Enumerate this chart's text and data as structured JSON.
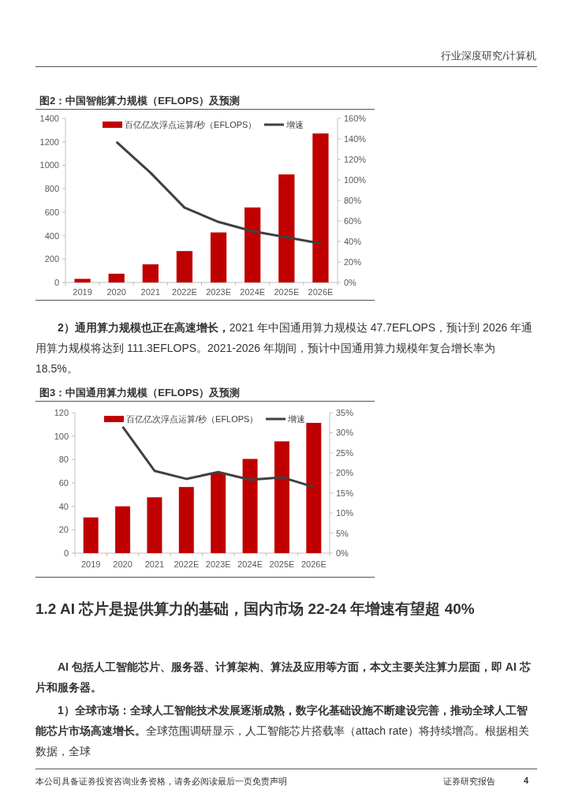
{
  "chart_data": [
    {
      "type": "bar",
      "title": "图2：中国智能算力规模（EFLOPS）及预测",
      "categories": [
        "2019",
        "2020",
        "2021",
        "2022E",
        "2023E",
        "2024E",
        "2025E",
        "2026E"
      ],
      "series": [
        {
          "name": "百亿亿次浮点运算/秒（EFLOPS）",
          "color": "#c00000",
          "values": [
            31,
            75,
            155,
            268,
            427,
            640,
            922,
            1271
          ]
        },
        {
          "name": "增速",
          "type": "line",
          "axis": "y2",
          "color": "#404040",
          "values": [
            null,
            137,
            107,
            73,
            59,
            50,
            44,
            38
          ]
        }
      ],
      "ylim": [
        0,
        1400
      ],
      "yticks": [
        0,
        200,
        400,
        600,
        800,
        1000,
        1200,
        1400
      ],
      "y2lim": [
        0,
        160
      ],
      "y2ticks": [
        {
          "value": 0,
          "label": "0%"
        },
        {
          "value": 20,
          "label": "20%"
        },
        {
          "value": 40,
          "label": "40%"
        },
        {
          "value": 60,
          "label": "60%"
        },
        {
          "value": 80,
          "label": "80%"
        },
        {
          "value": 100,
          "label": "100%"
        },
        {
          "value": 120,
          "label": "120%"
        },
        {
          "value": 140,
          "label": "140%"
        },
        {
          "value": 160,
          "label": "160%"
        }
      ],
      "legend": "top",
      "grid": false,
      "annotations": [
        "行业深度研究/计算机",
        "2）通用算力规模也正在高速增长，",
        "2021 年中国通用算力规模达 47.7EFLOPS，预计到 2026 年通用算力规模将达到 111.3EFLOPS。2021-2026 年期间，预计中国通用算力规模年复合增长率为 18.5%。"
      ]
    },
    {
      "type": "bar",
      "title": "图3：中国通用算力规模（EFLOPS）及预测",
      "categories": [
        "2019",
        "2020",
        "2021",
        "2022E",
        "2023E",
        "2024E",
        "2025E",
        "2026E"
      ],
      "series": [
        {
          "name": "百亿亿次浮点运算/秒（EFLOPS）",
          "color": "#c00000",
          "values": [
            30.5,
            40,
            47.7,
            56.5,
            68.5,
            80.5,
            95.5,
            111.3
          ]
        },
        {
          "name": "增速",
          "type": "line",
          "axis": "y2",
          "color": "#404040",
          "values": [
            null,
            31.5,
            20.5,
            18.5,
            20.2,
            18.3,
            18.9,
            16.5
          ]
        }
      ],
      "ylim": [
        0,
        120
      ],
      "yticks": [
        0,
        20,
        40,
        60,
        80,
        100,
        120
      ],
      "y2lim": [
        0,
        35
      ],
      "y2ticks": [
        {
          "value": 0,
          "label": "0%"
        },
        {
          "value": 5,
          "label": "5%"
        },
        {
          "value": 10,
          "label": "10%"
        },
        {
          "value": 15,
          "label": "15%"
        },
        {
          "value": 20,
          "label": "20%"
        },
        {
          "value": 25,
          "label": "25%"
        },
        {
          "value": 30,
          "label": "30%"
        },
        {
          "value": 35,
          "label": "35%"
        }
      ],
      "legend": "top",
      "grid": false,
      "annotations": [
        "1.2 AI 芯片是提供算力的基础，国内市场 22-24 年增速有望超 40%",
        "AI 包括人工智能芯片、服务器、计算架构、算法及应用等方面，本文主要关注算力层面，即 AI 芯片和服务器。",
        "1）全球市场：全球人工智能技术发展逐渐成熟，数字化基础设施不断建设完善，推动全球人工智能芯片市场高速增长。",
        "全球范围调研显示，人工智能芯片搭载率（attach rate）将持续增高。根据相关数据，全球",
        "本公司具备证券投资咨询业务资格，请务必阅读最后一页免责声明",
        "证券研究报告",
        "4"
      ]
    }
  ]
}
